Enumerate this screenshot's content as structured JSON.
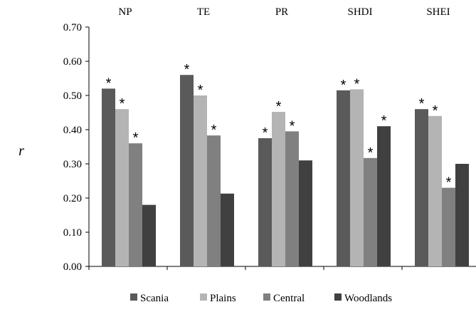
{
  "chart_data": {
    "type": "bar",
    "categories": [
      "NP",
      "TE",
      "PR",
      "SHDI",
      "SHEI"
    ],
    "ylabel": "r",
    "xlabel": "",
    "title": "",
    "ylim": [
      0,
      0.7
    ],
    "yticks": [
      "0.00",
      "0.10",
      "0.20",
      "0.30",
      "0.40",
      "0.50",
      "0.60",
      "0.70"
    ],
    "grid": false,
    "legend_position": "bottom",
    "significance_marker": "*",
    "series": [
      {
        "name": "Scania",
        "color": "#5a5a5a",
        "values": [
          0.52,
          0.56,
          0.375,
          0.515,
          0.46
        ],
        "significant": [
          true,
          true,
          true,
          true,
          true
        ]
      },
      {
        "name": "Plains",
        "color": "#b4b4b4",
        "values": [
          0.46,
          0.5,
          0.452,
          0.518,
          0.44
        ],
        "significant": [
          true,
          true,
          true,
          true,
          true
        ]
      },
      {
        "name": "Central",
        "color": "#808080",
        "values": [
          0.36,
          0.383,
          0.395,
          0.317,
          0.23
        ],
        "significant": [
          true,
          true,
          true,
          true,
          true
        ]
      },
      {
        "name": "Woodlands",
        "color": "#404040",
        "values": [
          0.18,
          0.213,
          0.31,
          0.41,
          0.3
        ],
        "significant": [
          false,
          false,
          false,
          true,
          false
        ]
      }
    ]
  }
}
